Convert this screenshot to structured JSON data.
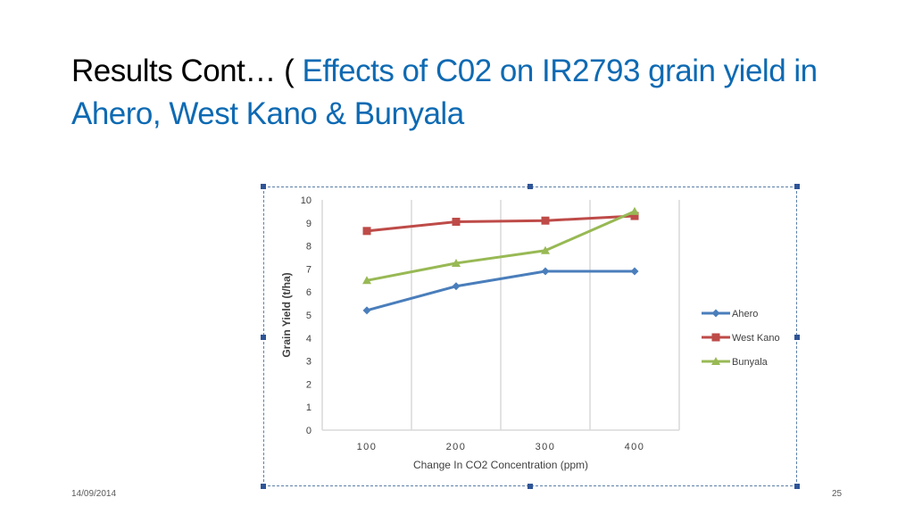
{
  "slide": {
    "title_part1": "Results Cont… ( ",
    "title_part2": "Effects of C02 on IR2793 grain yield  in Ahero, West Kano & Bunyala",
    "date": "14/09/2014",
    "page_number": "25"
  },
  "colors": {
    "title_accent": "#0e6ab3",
    "ahero": "#4a7ebb",
    "west_kano": "#be4b48",
    "bunyala": "#98b954"
  },
  "chart_data": {
    "type": "line",
    "categories": [
      "100",
      "200",
      "300",
      "400"
    ],
    "xlabel": "Change In CO2 Concentration (ppm)",
    "ylabel": "Grain Yield (t/ha)",
    "ylim": [
      0,
      10
    ],
    "yticks": [
      "0",
      "1",
      "2",
      "3",
      "4",
      "5",
      "6",
      "7",
      "8",
      "9",
      "10"
    ],
    "grid": "vertical",
    "legend_position": "right",
    "series": [
      {
        "name": "Ahero",
        "values": [
          5.2,
          6.25,
          6.9,
          6.9
        ],
        "marker": "diamond",
        "color": "#4a7ebb"
      },
      {
        "name": "West Kano",
        "values": [
          8.65,
          9.05,
          9.1,
          9.3
        ],
        "marker": "square",
        "color": "#be4b48"
      },
      {
        "name": "Bunyala",
        "values": [
          6.5,
          7.25,
          7.8,
          9.5
        ],
        "marker": "triangle",
        "color": "#98b954"
      }
    ]
  }
}
